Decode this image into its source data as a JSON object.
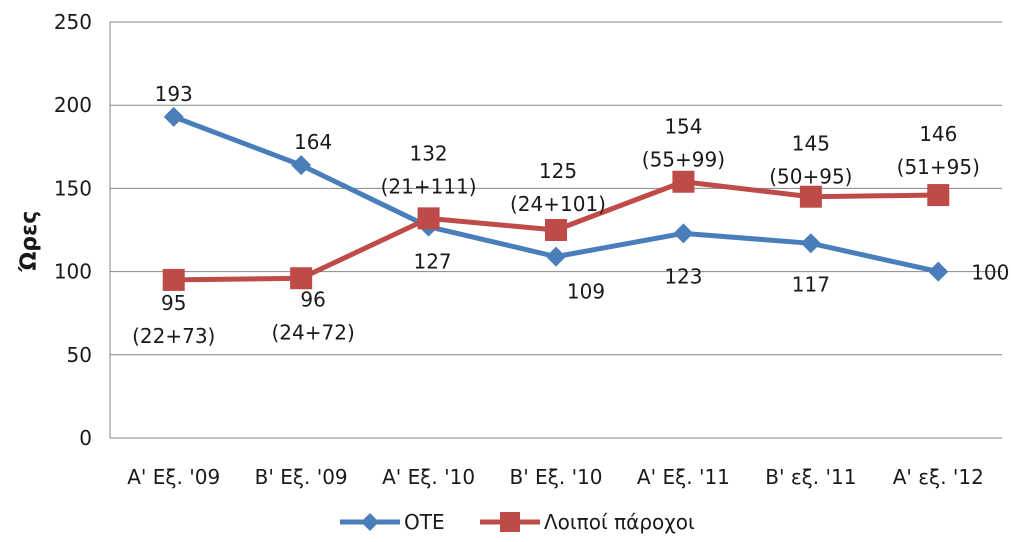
{
  "chart_data": {
    "type": "line",
    "title": "",
    "xlabel": "",
    "ylabel": "Ώρες",
    "ylim": [
      0,
      250
    ],
    "yticks": [
      0,
      50,
      100,
      150,
      200,
      250
    ],
    "grid": "horizontal",
    "legend_position": "bottom",
    "categories": [
      "Α' Εξ. '09",
      "Β' Εξ. '09",
      "Α' Εξ. '10",
      "Β' Εξ. '10",
      "Α' Εξ. '11",
      "Β' εξ. '11",
      "Α' εξ. '12"
    ],
    "series": [
      {
        "name": "ΟΤΕ",
        "color": "#4a7ebb",
        "marker": "diamond",
        "values": [
          193,
          164,
          127,
          109,
          123,
          117,
          100
        ],
        "labels": [
          [
            "193"
          ],
          [
            "164"
          ],
          [
            "127"
          ],
          [
            "109"
          ],
          [
            "123"
          ],
          [
            "117"
          ],
          [
            "100"
          ]
        ]
      },
      {
        "name": "Λοιποί πάροχοι",
        "color": "#be4b48",
        "marker": "square",
        "values": [
          95,
          96,
          132,
          125,
          154,
          145,
          146
        ],
        "labels": [
          [
            "95",
            "(22+73)"
          ],
          [
            "96",
            "(24+72)"
          ],
          [
            "132",
            "(21+111)"
          ],
          [
            "125",
            "(24+101)"
          ],
          [
            "154",
            "(55+99)"
          ],
          [
            "145",
            "(50+95)"
          ],
          [
            "146",
            "(51+95)"
          ]
        ]
      }
    ]
  }
}
